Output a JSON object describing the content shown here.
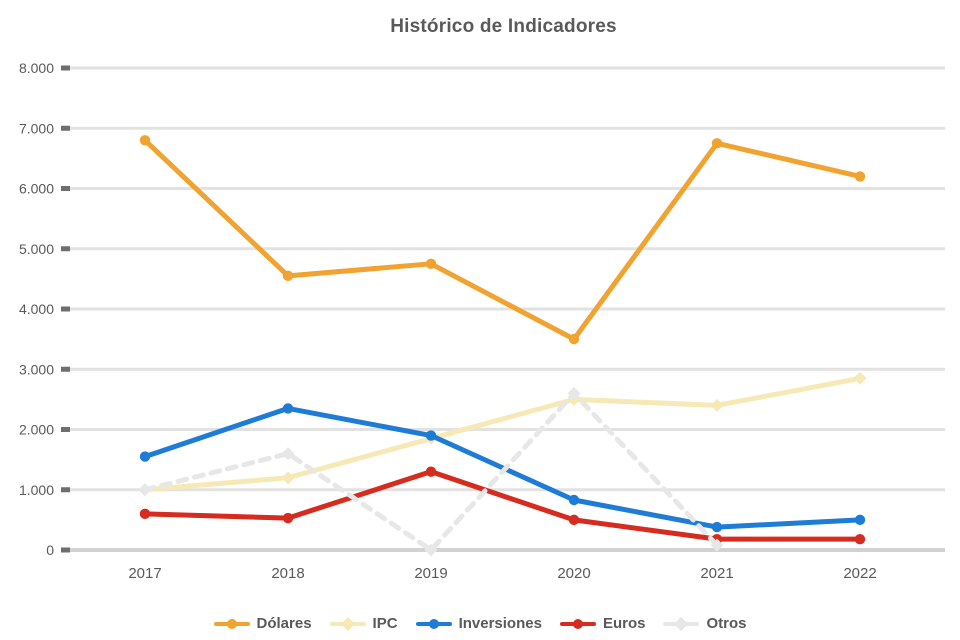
{
  "chart_data": {
    "type": "line",
    "title": "Histórico de Indicadores",
    "categories": [
      "2017",
      "2018",
      "2019",
      "2020",
      "2021",
      "2022"
    ],
    "y_ticks": [
      "8.000",
      "7.000",
      "6.000",
      "5.000",
      "4.000",
      "3.000",
      "2.000",
      "1.000",
      "0"
    ],
    "ylim": [
      0,
      8000
    ],
    "grid": "horizontal",
    "legend_position": "bottom",
    "series": [
      {
        "name": "Dólares",
        "color": "#F0A330",
        "marker": "circle",
        "dashed": false,
        "values": [
          6800,
          4550,
          4750,
          3500,
          6750,
          6200
        ]
      },
      {
        "name": "IPC",
        "color": "#F6E9B6",
        "marker": "diamond",
        "dashed": false,
        "values": [
          1000,
          1200,
          1850,
          2500,
          2400,
          2850
        ]
      },
      {
        "name": "Inversiones",
        "color": "#1E7CD6",
        "marker": "circle",
        "dashed": false,
        "values": [
          1550,
          2350,
          1900,
          830,
          380,
          500
        ]
      },
      {
        "name": "Euros",
        "color": "#D62B1F",
        "marker": "circle",
        "dashed": false,
        "values": [
          600,
          530,
          1300,
          500,
          180,
          180
        ]
      },
      {
        "name": "Otros",
        "color": "#E7E7E7",
        "marker": "diamond",
        "dashed": true,
        "values": [
          1000,
          1600,
          0,
          2600,
          80,
          null
        ]
      }
    ],
    "colors": {
      "text": "#595959",
      "gridline": "#e2e2e2",
      "axis": "#d2d2d2",
      "tick": "#6e6e6e"
    }
  }
}
